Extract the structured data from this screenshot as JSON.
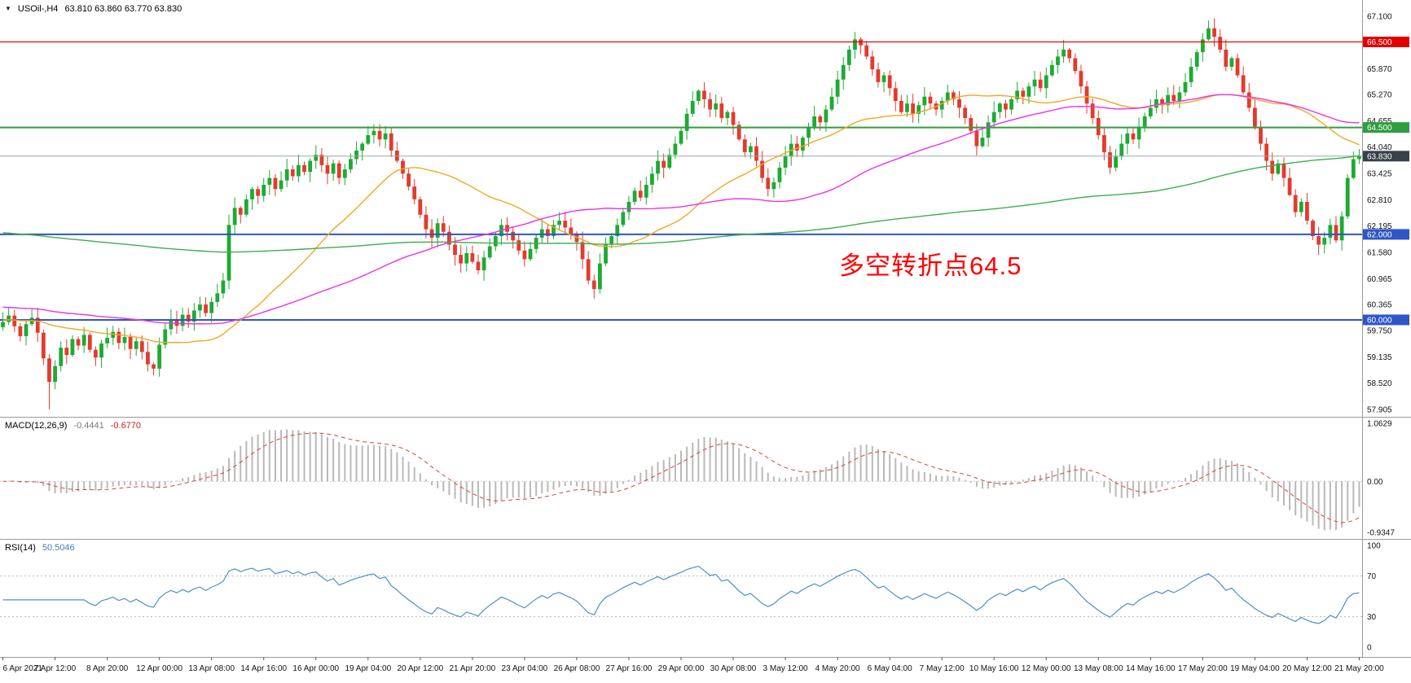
{
  "header": {
    "collapse_icon": "triangle-down",
    "symbol_period": "USOil-,H4",
    "ohlc": "63.810 63.860 63.770 63.830"
  },
  "chart_data": {
    "type": "candlestick",
    "symbol": "USOil-",
    "timeframe": "H4",
    "title": "USOil-,H4",
    "ohlc_display": {
      "open": "63.810",
      "high": "63.860",
      "low": "63.770",
      "close": "63.830"
    },
    "layout_hints": {
      "grid": false,
      "panels": [
        "price",
        "macd",
        "rsi"
      ],
      "price_axis": "right",
      "background": "#ffffff"
    },
    "x_labels": [
      "6 Apr 2021",
      "7 Apr 12:00",
      "8 Apr 20:00",
      "12 Apr 00:00",
      "13 Apr 08:00",
      "14 Apr 16:00",
      "16 Apr 00:00",
      "19 Apr 04:00",
      "20 Apr 12:00",
      "21 Apr 20:00",
      "23 Apr 04:00",
      "26 Apr 08:00",
      "27 Apr 16:00",
      "29 Apr 00:00",
      "30 Apr 08:00",
      "3 May 12:00",
      "4 May 20:00",
      "6 May 04:00",
      "7 May 12:00",
      "10 May 16:00",
      "12 May 00:00",
      "13 May 08:00",
      "14 May 16:00",
      "17 May 20:00",
      "19 May 04:00",
      "20 May 12:00",
      "21 May 20:00"
    ],
    "candles_per_label": 9,
    "first_open": 59.83,
    "closes": [
      59.95,
      60.1,
      59.85,
      59.62,
      59.9,
      60.05,
      59.7,
      59.1,
      58.55,
      58.92,
      59.35,
      59.18,
      59.55,
      59.4,
      59.65,
      59.3,
      59.12,
      59.45,
      59.58,
      59.72,
      59.46,
      59.6,
      59.32,
      59.5,
      59.25,
      58.96,
      58.86,
      59.42,
      59.78,
      60.02,
      59.86,
      60.12,
      59.96,
      60.22,
      60.36,
      60.16,
      60.42,
      60.62,
      60.92,
      62.22,
      62.62,
      62.46,
      62.82,
      63.06,
      62.9,
      63.16,
      63.32,
      63.06,
      63.26,
      63.52,
      63.36,
      63.62,
      63.46,
      63.72,
      63.86,
      63.62,
      63.42,
      63.66,
      63.32,
      63.52,
      63.76,
      63.96,
      64.12,
      64.32,
      64.42,
      64.22,
      64.36,
      63.96,
      63.72,
      63.42,
      63.12,
      62.82,
      62.46,
      62.12,
      61.92,
      62.26,
      62.06,
      61.76,
      61.52,
      61.32,
      61.56,
      61.36,
      61.16,
      61.46,
      61.72,
      61.96,
      62.22,
      62.06,
      61.86,
      61.62,
      61.42,
      61.66,
      61.92,
      62.12,
      61.96,
      62.22,
      62.32,
      62.16,
      62.02,
      61.82,
      61.42,
      60.92,
      60.72,
      61.32,
      61.76,
      61.96,
      62.22,
      62.52,
      62.76,
      63.02,
      62.86,
      63.16,
      63.42,
      63.72,
      63.56,
      63.86,
      64.12,
      64.42,
      64.82,
      65.12,
      65.36,
      65.16,
      64.92,
      65.06,
      64.72,
      64.86,
      64.56,
      64.22,
      63.92,
      64.06,
      63.72,
      63.32,
      63.06,
      63.22,
      63.56,
      63.82,
      64.12,
      63.96,
      64.26,
      64.52,
      64.76,
      64.62,
      64.92,
      65.22,
      65.62,
      65.96,
      66.32,
      66.56,
      66.42,
      66.16,
      65.86,
      65.56,
      65.72,
      65.42,
      65.12,
      64.86,
      65.06,
      64.82,
      65.02,
      65.22,
      65.06,
      64.92,
      65.12,
      65.32,
      65.16,
      64.96,
      64.72,
      64.42,
      64.06,
      64.26,
      64.62,
      64.86,
      65.06,
      64.92,
      65.16,
      65.36,
      65.22,
      65.46,
      65.62,
      65.42,
      65.72,
      65.96,
      66.16,
      66.32,
      66.12,
      65.82,
      65.46,
      65.06,
      64.72,
      64.32,
      63.92,
      63.56,
      63.82,
      64.12,
      64.36,
      64.22,
      64.52,
      64.76,
      64.96,
      65.16,
      65.02,
      65.26,
      65.12,
      65.32,
      65.56,
      65.92,
      66.26,
      66.56,
      66.82,
      66.62,
      66.32,
      65.92,
      66.12,
      65.72,
      65.32,
      64.96,
      64.52,
      64.12,
      63.72,
      63.42,
      63.66,
      63.32,
      62.92,
      62.52,
      62.76,
      62.32,
      61.96,
      61.76,
      61.92,
      62.22,
      61.86,
      62.42,
      63.32,
      63.76,
      63.83
    ],
    "extremes": {
      "low_index": 8,
      "low_price": 57.91,
      "high_index": 208,
      "high_price": 67.0
    },
    "y_axis": {
      "min": 57.905,
      "max": 67.1,
      "ticks": [
        "67.100",
        "65.870",
        "65.270",
        "64.655",
        "64.040",
        "63.425",
        "62.810",
        "62.195",
        "61.580",
        "60.965",
        "60.365",
        "59.750",
        "59.135",
        "58.520",
        "57.905"
      ]
    },
    "candle_colors": {
      "up": "#1daa35",
      "down": "#e23b2e"
    },
    "price_lines": [
      {
        "price": 66.5,
        "label": "66.500",
        "color": "#f00000",
        "label_bg": "#e20000",
        "width": 1.2,
        "role": "resistance-line"
      },
      {
        "price": 64.5,
        "label": "64.500",
        "color": "#2f9e3f",
        "label_bg": "#2f9e3f",
        "width": 2,
        "role": "pivot-line"
      },
      {
        "price": 63.83,
        "label": "63.830",
        "color": "#9aa7b0",
        "label_bg": "#37414a",
        "width": 1,
        "role": "current-price-line"
      },
      {
        "price": 62.0,
        "label": "62.000",
        "color": "#2f56c6",
        "label_bg": "#2f56c6",
        "width": 2,
        "role": "support-line"
      },
      {
        "price": 60.0,
        "label": "60.000",
        "color": "#2f56c6",
        "label_bg": "#2f56c6",
        "width": 2,
        "role": "support-line"
      }
    ],
    "moving_averages": [
      {
        "name": "fast",
        "type": "sma",
        "period": 30,
        "seed": 60.0,
        "color": "#f5a623"
      },
      {
        "name": "medium",
        "type": "sma",
        "period": 66,
        "seed": 60.3,
        "color": "#e932e9"
      },
      {
        "name": "slow",
        "type": "sma",
        "period": 200,
        "seed": 62.05,
        "color": "#3fae49"
      }
    ],
    "annotation": {
      "text": "多空转折点64.5",
      "color": "#ff0000"
    },
    "indicators": [
      {
        "id": "macd",
        "label": "MACD(12,26,9)",
        "values": [
          "-0.4441",
          "-0.6770"
        ],
        "params": {
          "fast": 12,
          "slow": 26,
          "signal": 9
        },
        "axis": [
          "1.0629",
          "0.00",
          "-0.9347"
        ],
        "ylim": [
          -0.9347,
          1.0629
        ],
        "histogram_color": "#b9b9b9",
        "signal_color": "#e03c3c"
      },
      {
        "id": "rsi",
        "label": "RSI(14)",
        "values": [
          "50.5046"
        ],
        "period": 14,
        "axis": [
          "100",
          "70",
          "30",
          "0"
        ],
        "levels": [
          70,
          30
        ],
        "ylim": [
          0,
          100
        ],
        "line_color": "#4a8fd2"
      }
    ]
  }
}
